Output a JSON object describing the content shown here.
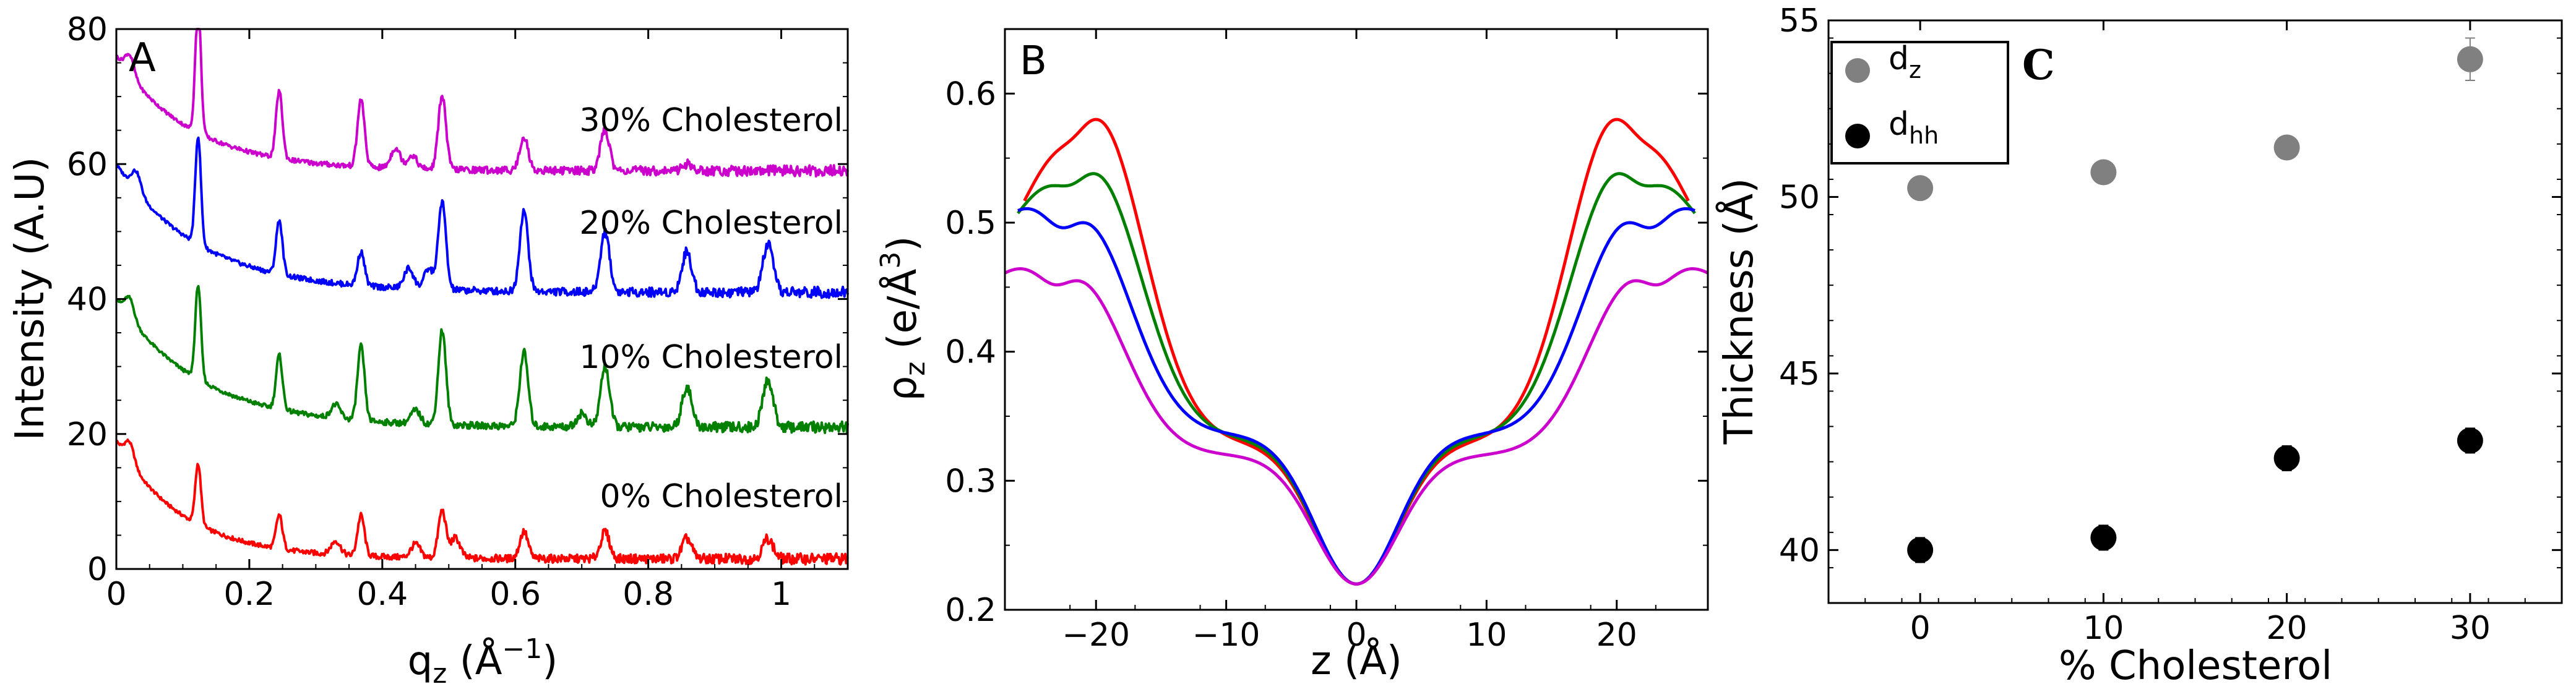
{
  "chart_data": [
    {
      "type": "line",
      "panel_label": "A",
      "xlabel": "q",
      "xlabel_sub": "z",
      "xlabel_unit_open": " (Å",
      "xlabel_sup": "−1",
      "xlabel_unit_close": ")",
      "ylabel": "Intensity (A.U)",
      "xlim": [
        0,
        1.1
      ],
      "ylim": [
        0,
        80
      ],
      "xticks": [
        0,
        0.2,
        0.4,
        0.6,
        0.8,
        1
      ],
      "xtick_labels": [
        "0",
        "0.2",
        "0.4",
        "0.6",
        "0.8",
        "1"
      ],
      "yticks": [
        0,
        20,
        40,
        60,
        80
      ],
      "ytick_labels": [
        "0",
        "20",
        "40",
        "60",
        "80"
      ],
      "peak_positions_q": [
        0.123,
        0.245,
        0.368,
        0.49,
        0.613,
        0.735,
        0.858,
        0.98
      ],
      "series": [
        {
          "name": "0% Cholesterol",
          "label": "0% Cholesterol",
          "color": "#ff0000",
          "offset": 0,
          "start": 19,
          "decay": 10,
          "baseline": 1.5,
          "peaks": [
            9,
            5,
            6,
            7,
            4,
            4,
            3,
            3
          ],
          "extra_peaks": [
            [
              0.02,
              3
            ],
            [
              0.33,
              2
            ],
            [
              0.45,
              2
            ],
            [
              0.51,
              3
            ]
          ]
        },
        {
          "name": "10% Cholesterol",
          "label": "10% Cholesterol",
          "color": "#008000",
          "offset": 20,
          "start": 40,
          "decay": 8,
          "baseline": 21,
          "peaks": [
            14,
            8,
            11,
            14,
            11,
            9,
            6,
            7
          ],
          "extra_peaks": [
            [
              0.02,
              3
            ],
            [
              0.33,
              2
            ],
            [
              0.45,
              2
            ],
            [
              0.7,
              2
            ]
          ]
        },
        {
          "name": "20% Cholesterol",
          "label": "20% Cholesterol",
          "color": "#0000ff",
          "offset": 40,
          "start": 60,
          "decay": 8,
          "baseline": 41,
          "peaks": [
            16,
            8,
            5,
            13,
            12,
            9,
            6,
            7
          ],
          "extra_peaks": [
            [
              0.03,
              3
            ],
            [
              0.44,
              3
            ],
            [
              0.47,
              3
            ]
          ]
        },
        {
          "name": "30% Cholesterol",
          "label": "30% Cholesterol",
          "color": "#cc00cc",
          "offset": 60,
          "start": 76,
          "decay": 9,
          "baseline": 59,
          "peaks": [
            19,
            10,
            10,
            11,
            5,
            6,
            1,
            0
          ],
          "extra_peaks": [
            [
              0.02,
              3
            ],
            [
              0.42,
              3
            ],
            [
              0.445,
              2
            ]
          ]
        }
      ]
    },
    {
      "type": "line",
      "panel_label": "B",
      "xlabel": "z (Å)",
      "ylabel": "ρ",
      "ylabel_sub": "z",
      "ylabel_unit_open": " (e/Å",
      "ylabel_sup": "3",
      "ylabel_unit_close": ")",
      "xlim": [
        -27,
        27
      ],
      "ylim": [
        0.2,
        0.65
      ],
      "xticks": [
        -20,
        -10,
        0,
        10,
        20
      ],
      "xtick_labels": [
        "−20",
        "−10",
        "0",
        "10",
        "20"
      ],
      "yticks": [
        0.2,
        0.3,
        0.4,
        0.5,
        0.6
      ],
      "ytick_labels": [
        "0.2",
        "0.3",
        "0.4",
        "0.5",
        "0.6"
      ],
      "series": [
        {
          "name": "0% Cholesterol",
          "color": "#ff0000",
          "peak_z": 20,
          "peak": 0.58,
          "center": 0.22,
          "shoulder": 0.33,
          "edge": 0.455,
          "z_range": 25.5
        },
        {
          "name": "10% Cholesterol",
          "color": "#008000",
          "peak_z": 20.2,
          "peak": 0.538,
          "center": 0.22,
          "shoulder": 0.333,
          "edge": 0.465,
          "z_range": 26
        },
        {
          "name": "20% Cholesterol",
          "color": "#0000ff",
          "peak_z": 21,
          "peak": 0.5,
          "center": 0.22,
          "shoulder": 0.336,
          "edge": 0.475,
          "z_range": 26
        },
        {
          "name": "30% Cholesterol",
          "color": "#cc00cc",
          "peak_z": 21.5,
          "peak": 0.455,
          "center": 0.22,
          "shoulder": 0.32,
          "edge": 0.435,
          "z_range": 27
        }
      ]
    },
    {
      "type": "scatter",
      "panel_label": "C",
      "xlabel": "% Cholesterol",
      "ylabel": "Thickness (Å)",
      "xlim": [
        -5,
        35
      ],
      "ylim": [
        38.5,
        55
      ],
      "xticks": [
        0,
        10,
        20,
        30
      ],
      "xtick_labels": [
        "0",
        "10",
        "20",
        "30"
      ],
      "yticks": [
        40,
        45,
        50,
        55
      ],
      "ytick_labels": [
        "40",
        "45",
        "50",
        "55"
      ],
      "legend_position": "top-left",
      "series": [
        {
          "name": "d_z",
          "label_main": "d",
          "label_sub": "z",
          "color": "#808080",
          "x": [
            0,
            10,
            20,
            30
          ],
          "y": [
            50.25,
            50.7,
            51.4,
            53.9
          ],
          "err": [
            0.25,
            0.2,
            0.2,
            0.6
          ]
        },
        {
          "name": "d_hh",
          "label_main": "d",
          "label_sub": "hh",
          "color": "#000000",
          "x": [
            0,
            10,
            20,
            30
          ],
          "y": [
            40.0,
            40.35,
            42.6,
            43.1
          ],
          "err": [
            0.35,
            0.35,
            0.35,
            0.35
          ]
        }
      ]
    }
  ]
}
